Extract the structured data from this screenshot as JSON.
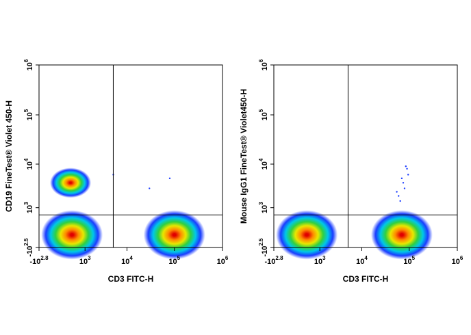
{
  "chart_data": [
    {
      "type": "scatter",
      "x_label": "CD3 FITC-H",
      "y_label": "CD19  FineTest® Violet 450-H",
      "xlim": [
        -631,
        1000000
      ],
      "ylim": [
        -316,
        1000000
      ],
      "xticks": [
        {
          "value": -631,
          "label": "-10",
          "exp": "2.8"
        },
        {
          "value": 1000,
          "label": "10",
          "exp": "3"
        },
        {
          "value": 10000,
          "label": "10",
          "exp": "4"
        },
        {
          "value": 100000,
          "label": "10",
          "exp": "5"
        },
        {
          "value": 1000000,
          "label": "10",
          "exp": "6"
        }
      ],
      "yticks": [
        {
          "value": -316,
          "label": "-10",
          "exp": "2.5"
        },
        {
          "value": 1000,
          "label": "10",
          "exp": "3"
        },
        {
          "value": 10000,
          "label": "10",
          "exp": "4"
        },
        {
          "value": 100000,
          "label": "10",
          "exp": "5"
        },
        {
          "value": 1000000,
          "label": "10",
          "exp": "6"
        }
      ],
      "gate_x": 5000,
      "gate_y": 600,
      "x": [
        300,
        350,
        100000
      ],
      "values": [
        4000,
        0,
        0
      ],
      "events": {
        "x": [
          5000,
          30000,
          80000
        ],
        "values": [
          6000,
          3000,
          5000
        ]
      },
      "colormap": [
        "#e00000",
        "#ff8a00",
        "#e8e800",
        "#30d040",
        "#00c8e8",
        "#1a3cff"
      ]
    },
    {
      "type": "scatter",
      "x_label": "CD3 FITC-H",
      "y_label": "Mouse IgG1  FineTest® Violet450-H",
      "xlim": [
        -631,
        1000000
      ],
      "ylim": [
        -316,
        1000000
      ],
      "xticks": [
        {
          "value": -631,
          "label": "-10",
          "exp": "2.8"
        },
        {
          "value": 1000,
          "label": "10",
          "exp": "3"
        },
        {
          "value": 10000,
          "label": "10",
          "exp": "4"
        },
        {
          "value": 100000,
          "label": "10",
          "exp": "5"
        },
        {
          "value": 1000000,
          "label": "10",
          "exp": "6"
        }
      ],
      "yticks": [
        {
          "value": -316,
          "label": "-10",
          "exp": "2.5"
        },
        {
          "value": 1000,
          "label": "10",
          "exp": "3"
        },
        {
          "value": 10000,
          "label": "10",
          "exp": "4"
        },
        {
          "value": 100000,
          "label": "10",
          "exp": "5"
        },
        {
          "value": 1000000,
          "label": "10",
          "exp": "6"
        }
      ],
      "gate_x": 5000,
      "gate_y": 600,
      "x": [
        350,
        70000
      ],
      "values": [
        0,
        0
      ],
      "events": {
        "x": [
          60000,
          80000,
          70000,
          90000,
          65000,
          75000,
          85000,
          55000,
          95000
        ],
        "values": [
          2000,
          3000,
          5000,
          8000,
          1500,
          4000,
          9000,
          2500,
          6000
        ]
      },
      "colormap": [
        "#e00000",
        "#ff8a00",
        "#e8e800",
        "#30d040",
        "#00c8e8",
        "#1a3cff"
      ]
    }
  ]
}
